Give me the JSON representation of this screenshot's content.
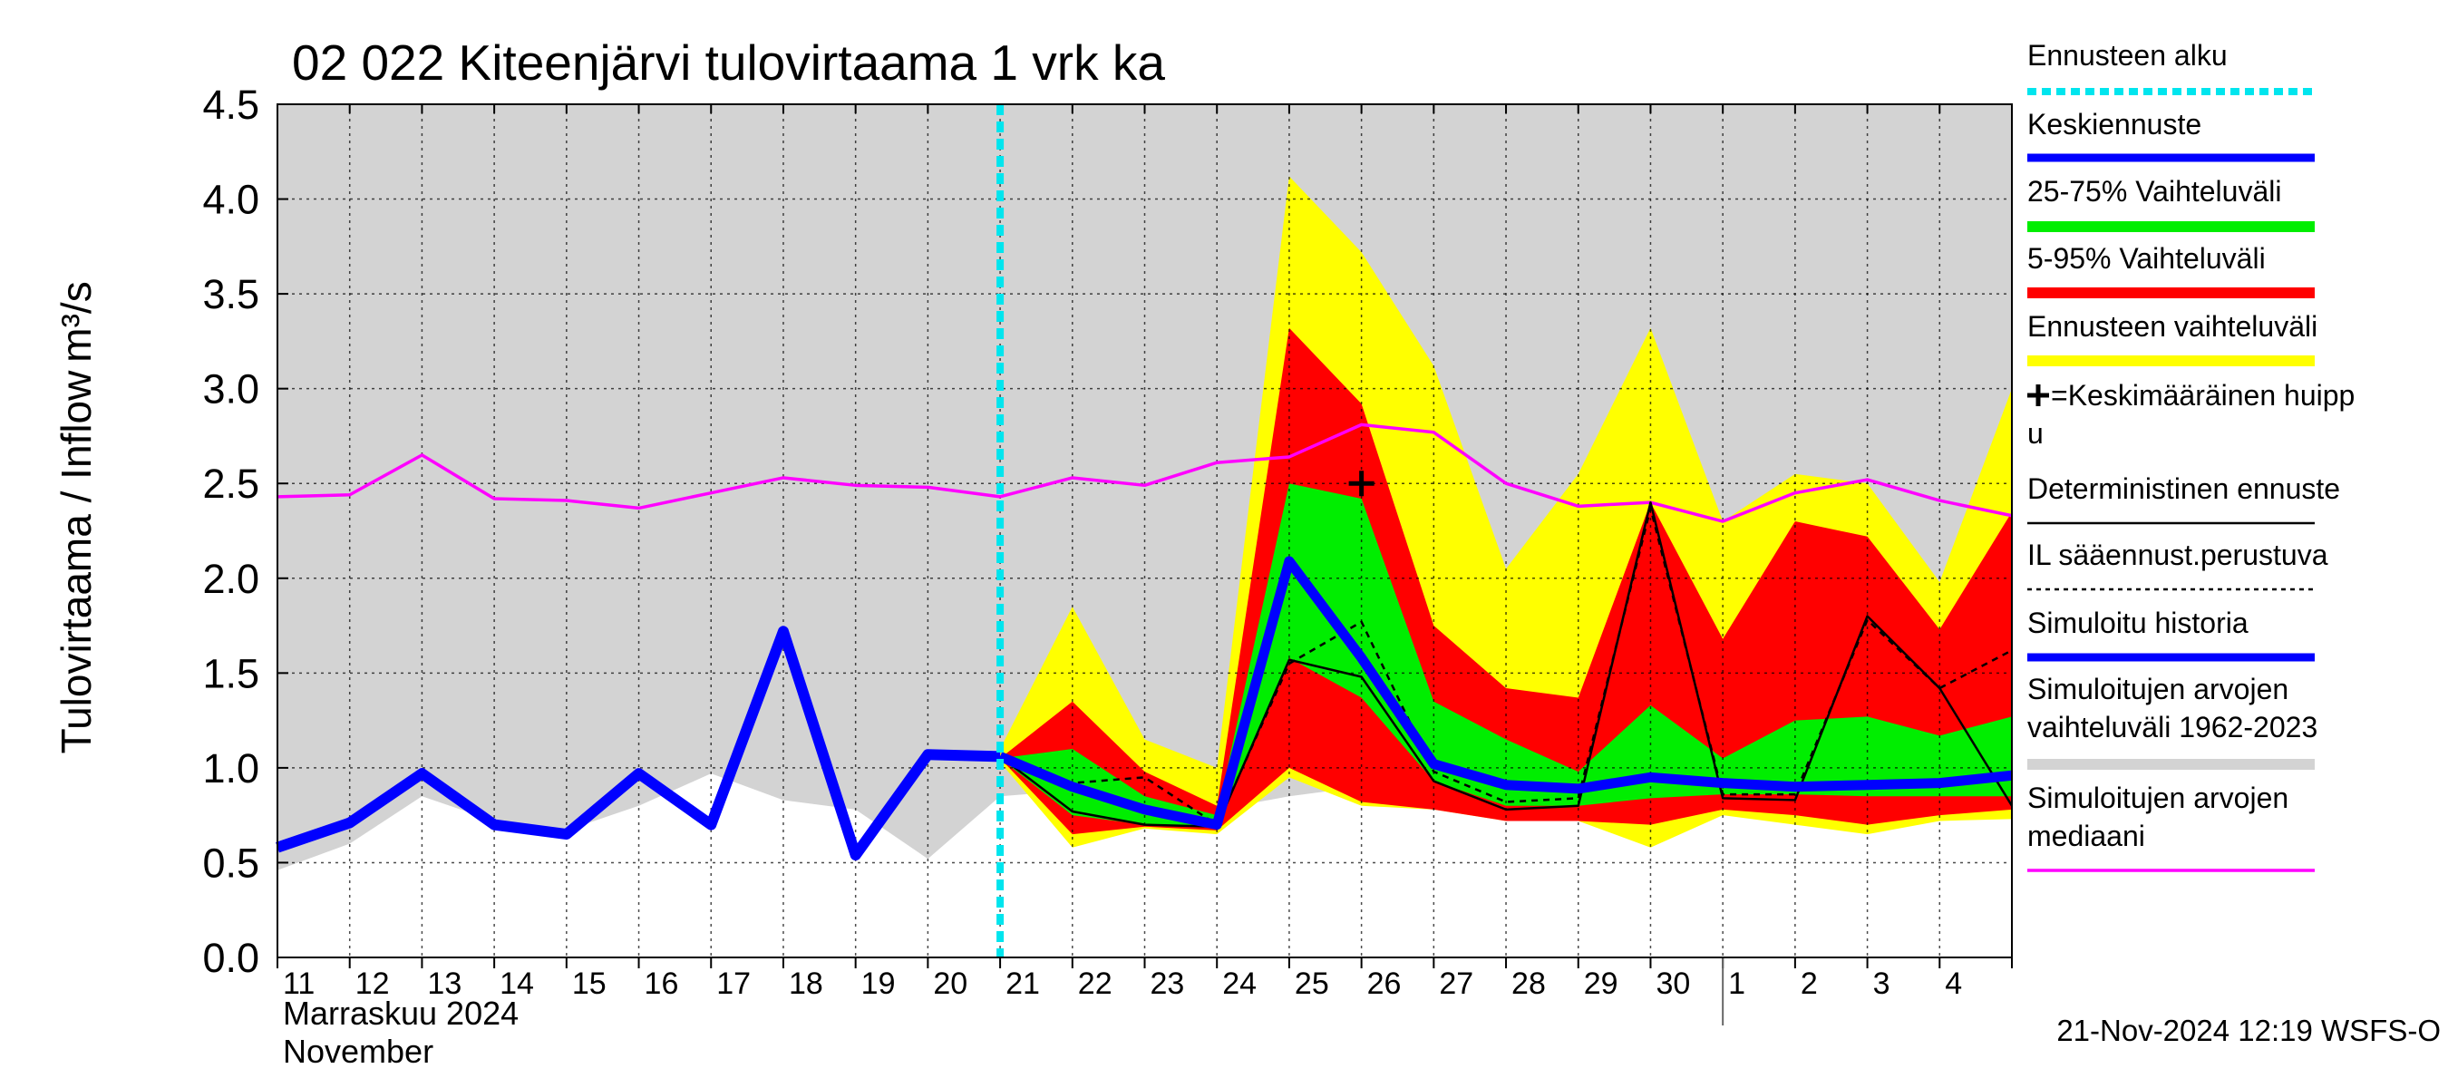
{
  "chart_data": {
    "type": "line",
    "title": "02 022 Kiteenjärvi tulovirtaama 1 vrk ka",
    "y_label": "Tulovirtaama / Inflow",
    "y_unit": "m³/s",
    "x_label_lines": [
      "Marraskuu 2024",
      "November"
    ],
    "footer": "21-Nov-2024 12:19 WSFS-O",
    "categories": [
      "11",
      "12",
      "13",
      "14",
      "15",
      "16",
      "17",
      "18",
      "19",
      "20",
      "21",
      "22",
      "23",
      "24",
      "25",
      "26",
      "27",
      "28",
      "29",
      "30",
      "1",
      "2",
      "3",
      "4",
      null
    ],
    "month_break": "1",
    "ylim": [
      0,
      4.5
    ],
    "yticks": [
      {
        "value": 0,
        "label": "0.0"
      },
      {
        "value": 0.5,
        "label": "0.5"
      },
      {
        "value": 1,
        "label": "1.0"
      },
      {
        "value": 1.5,
        "label": "1.5"
      },
      {
        "value": 2,
        "label": "2.0"
      },
      {
        "value": 2.5,
        "label": "2.5"
      },
      {
        "value": 3,
        "label": "3.0"
      },
      {
        "value": 3.5,
        "label": "3.5"
      },
      {
        "value": 4,
        "label": "4.0"
      },
      {
        "value": 4.5,
        "label": "4.5"
      }
    ],
    "grid": true,
    "forecast_start": "21",
    "peak": {
      "x": "26",
      "value": 2.5,
      "color": "#000000"
    },
    "bands": [
      {
        "key": "hist",
        "color": "#d3d3d3",
        "upper": [
          4.5,
          4.5,
          4.5,
          4.5,
          4.5,
          4.5,
          4.5,
          4.5,
          4.5,
          4.5,
          4.5,
          4.5,
          4.5,
          4.5,
          4.5,
          4.5,
          4.5,
          4.5,
          4.5,
          4.5,
          4.5,
          4.5,
          4.5,
          4.5,
          4.5
        ],
        "lower": [
          0.46,
          0.6,
          0.85,
          0.72,
          0.67,
          0.8,
          0.97,
          0.83,
          0.78,
          0.52,
          0.85,
          0.88,
          0.82,
          0.78,
          0.85,
          0.9,
          0.84,
          0.8,
          0.78,
          0.8,
          0.82,
          0.82,
          0.88,
          0.82,
          0.76
        ]
      },
      {
        "key": "ens",
        "color": "#ffff00",
        "upper": [
          null,
          null,
          null,
          null,
          null,
          null,
          null,
          null,
          null,
          null,
          1.1,
          1.85,
          1.15,
          1.0,
          4.12,
          3.72,
          3.12,
          2.05,
          2.55,
          3.32,
          2.3,
          2.55,
          2.5,
          1.98,
          3.0
        ],
        "lower": [
          null,
          null,
          null,
          null,
          null,
          null,
          null,
          null,
          null,
          null,
          1.03,
          0.58,
          0.68,
          0.65,
          0.95,
          0.8,
          0.78,
          0.72,
          0.72,
          0.58,
          0.75,
          0.7,
          0.65,
          0.72,
          0.73
        ]
      },
      {
        "key": "p595",
        "color": "#ff0000",
        "upper": [
          null,
          null,
          null,
          null,
          null,
          null,
          null,
          null,
          null,
          null,
          1.05,
          1.35,
          0.98,
          0.8,
          3.32,
          2.92,
          1.75,
          1.42,
          1.37,
          2.4,
          1.68,
          2.3,
          2.22,
          1.73,
          2.35
        ],
        "lower": [
          null,
          null,
          null,
          null,
          null,
          null,
          null,
          null,
          null,
          null,
          1.05,
          0.65,
          0.69,
          0.67,
          1.0,
          0.82,
          0.78,
          0.72,
          0.72,
          0.7,
          0.78,
          0.75,
          0.7,
          0.75,
          0.78
        ]
      },
      {
        "key": "p2575",
        "color": "#00ee00",
        "upper": [
          null,
          null,
          null,
          null,
          null,
          null,
          null,
          null,
          null,
          null,
          1.05,
          1.1,
          0.85,
          0.75,
          2.5,
          2.42,
          1.35,
          1.15,
          0.98,
          1.33,
          1.05,
          1.25,
          1.27,
          1.17,
          1.27
        ],
        "lower": [
          null,
          null,
          null,
          null,
          null,
          null,
          null,
          null,
          null,
          null,
          1.05,
          0.75,
          0.7,
          0.69,
          1.58,
          1.37,
          0.93,
          0.8,
          0.8,
          0.84,
          0.86,
          0.86,
          0.85,
          0.85,
          0.85
        ]
      }
    ],
    "series": [
      {
        "key": "median",
        "color": "#ff00ff",
        "width": 3.5,
        "dash": "",
        "values": [
          2.43,
          2.44,
          2.65,
          2.42,
          2.41,
          2.37,
          2.45,
          2.53,
          2.49,
          2.48,
          2.43,
          2.53,
          2.49,
          2.61,
          2.64,
          2.81,
          2.77,
          2.5,
          2.38,
          2.4,
          2.3,
          2.45,
          2.52,
          2.41,
          2.33
        ]
      },
      {
        "key": "det",
        "color": "#000000",
        "width": 2.5,
        "dash": "",
        "values": [
          null,
          null,
          null,
          null,
          null,
          null,
          null,
          null,
          null,
          null,
          1.06,
          0.77,
          0.7,
          0.69,
          1.57,
          1.48,
          0.93,
          0.78,
          0.8,
          2.4,
          0.84,
          0.83,
          1.8,
          1.42,
          0.8
        ]
      },
      {
        "key": "il",
        "color": "#000000",
        "width": 2.5,
        "dash": "7,6",
        "values": [
          null,
          null,
          null,
          null,
          null,
          null,
          null,
          null,
          null,
          null,
          1.06,
          0.92,
          0.95,
          0.7,
          1.55,
          1.77,
          0.98,
          0.82,
          0.84,
          2.37,
          0.86,
          0.86,
          1.78,
          1.42,
          1.62
        ]
      },
      {
        "key": "mean",
        "color": "#0000ff",
        "width": 11,
        "dash": "",
        "values": [
          null,
          null,
          null,
          null,
          null,
          null,
          null,
          null,
          null,
          null,
          1.06,
          0.9,
          0.78,
          0.7,
          2.09,
          1.58,
          1.02,
          0.91,
          0.89,
          0.95,
          0.92,
          0.9,
          0.91,
          0.92,
          0.96
        ]
      },
      {
        "key": "sim",
        "color": "#0000ff",
        "width": 12,
        "dash": "",
        "values": [
          0.58,
          0.71,
          0.97,
          0.7,
          0.65,
          0.97,
          0.7,
          1.72,
          0.54,
          1.07,
          1.06,
          null,
          null,
          null,
          null,
          null,
          null,
          null,
          null,
          null,
          null,
          null,
          null,
          null,
          null
        ]
      }
    ],
    "legend": [
      {
        "lines": [
          "Ennusteen alku"
        ],
        "color": "#00e5ee",
        "dash": "10,6",
        "width": 8
      },
      {
        "lines": [
          "Keskiennuste"
        ],
        "color": "#0000ff",
        "dash": "",
        "width": 9
      },
      {
        "lines": [
          "25-75% Vaihteluväli"
        ],
        "color": "#00ee00",
        "dash": "",
        "width": 12
      },
      {
        "lines": [
          "5-95% Vaihteluväli"
        ],
        "color": "#ff0000",
        "dash": "",
        "width": 12
      },
      {
        "lines": [
          "Ennusteen vaihteluväli"
        ],
        "color": "#ffff00",
        "dash": "",
        "width": 12
      },
      {
        "lines": [
          "=Keskimääräinen huipp",
          "u"
        ],
        "color": "#000000",
        "dash": "",
        "width": 0,
        "marker": true
      },
      {
        "lines": [
          "Deterministinen ennuste"
        ],
        "color": "#000000",
        "dash": "",
        "width": 2.5
      },
      {
        "lines": [
          "IL sääennust.perustuva"
        ],
        "color": "#000000",
        "dash": "5,5",
        "width": 2.5
      },
      {
        "lines": [
          "Simuloitu historia"
        ],
        "color": "#0000ff",
        "dash": "",
        "width": 9
      },
      {
        "lines": [
          "Simuloitujen arvojen",
          "vaihteluväli 1962-2023"
        ],
        "color": "#d3d3d3",
        "dash": "",
        "width": 12
      },
      {
        "lines": [
          "Simuloitujen arvojen",
          "mediaani"
        ],
        "color": "#ff00ff",
        "dash": "",
        "width": 3.5
      }
    ]
  }
}
